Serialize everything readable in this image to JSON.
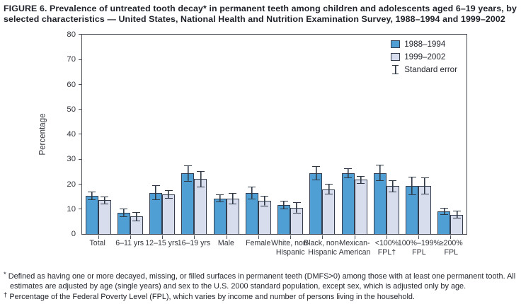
{
  "title": {
    "text": "FIGURE 6. Prevalence of untreated tooth decay* in permanent teeth among children and adolescents aged 6–19 years, by selected characteristics — United States, National Health and Nutrition Examination Survey, 1988–1994 and 1999–2002"
  },
  "chart_data": {
    "type": "bar",
    "title": "Prevalence of untreated tooth decay in permanent teeth among children and adolescents aged 6–19 years",
    "xlabel": "",
    "ylabel": "Percentage",
    "ylim": [
      0,
      80
    ],
    "yticks": [
      0,
      10,
      20,
      30,
      40,
      50,
      60,
      70,
      80
    ],
    "grid": false,
    "categories": [
      "Total",
      "6–11 yrs",
      "12–15 yrs",
      "16–19 yrs",
      "Male",
      "Female",
      "White, non-Hispanic",
      "Black, non-Hispanic",
      "Mexican-American",
      "<100% FPL†",
      "100%–199% FPL",
      "≥200% FPL"
    ],
    "category_labels": [
      [
        "Total"
      ],
      [
        "6–11 yrs"
      ],
      [
        "12–15 yrs"
      ],
      [
        "16–19 yrs"
      ],
      [
        "Male"
      ],
      [
        "Female"
      ],
      [
        "White, non-",
        "Hispanic"
      ],
      [
        "Black, non-",
        "Hispanic"
      ],
      [
        "Mexican-",
        "American"
      ],
      [
        "<100%",
        "FPL†"
      ],
      [
        "100%–199%",
        "FPL"
      ],
      [
        "≥200%",
        "FPL"
      ]
    ],
    "series": [
      {
        "name": "1988–1994",
        "color": "#4f9fd5",
        "values": [
          15.4,
          8.5,
          16.6,
          24.3,
          14.3,
          16.4,
          11.5,
          24.4,
          24.4,
          24.5,
          19.3,
          9.2
        ],
        "se": [
          1.7,
          1.6,
          3.0,
          3.2,
          1.5,
          2.5,
          1.7,
          2.8,
          2.0,
          3.3,
          3.6,
          1.4
        ]
      },
      {
        "name": "1999–2002",
        "color": "#d8ddee",
        "values": [
          13.5,
          7.0,
          16.0,
          22.0,
          14.3,
          13.2,
          10.5,
          18.0,
          21.8,
          19.2,
          19.3,
          7.8
        ],
        "se": [
          1.5,
          1.9,
          1.7,
          3.3,
          2.3,
          2.0,
          2.2,
          2.2,
          1.6,
          2.4,
          3.4,
          1.6
        ]
      }
    ],
    "legend": {
      "position": "top-right",
      "se_label": "Standard error"
    }
  },
  "footnotes": [
    {
      "marker": "*",
      "text": "Defined as having one or more decayed, missing, or filled surfaces in permanent teeth (DMFS>0) among those with at least one permanent tooth. All estimates are adjusted by age (single years) and sex to the U.S. 2000 standard population, except sex, which is adjusted only by age."
    },
    {
      "marker": "†",
      "text": "Percentage of the Federal Poverty Level (FPL), which varies by income and number of persons living in the household."
    }
  ],
  "colors": {
    "series1_fill": "#4f9fd5",
    "series2_fill": "#d8ddee",
    "bar_border": "#333d4d",
    "error_bar": "#2e3744",
    "frame": "#4b4e57",
    "text": "#23262e"
  }
}
